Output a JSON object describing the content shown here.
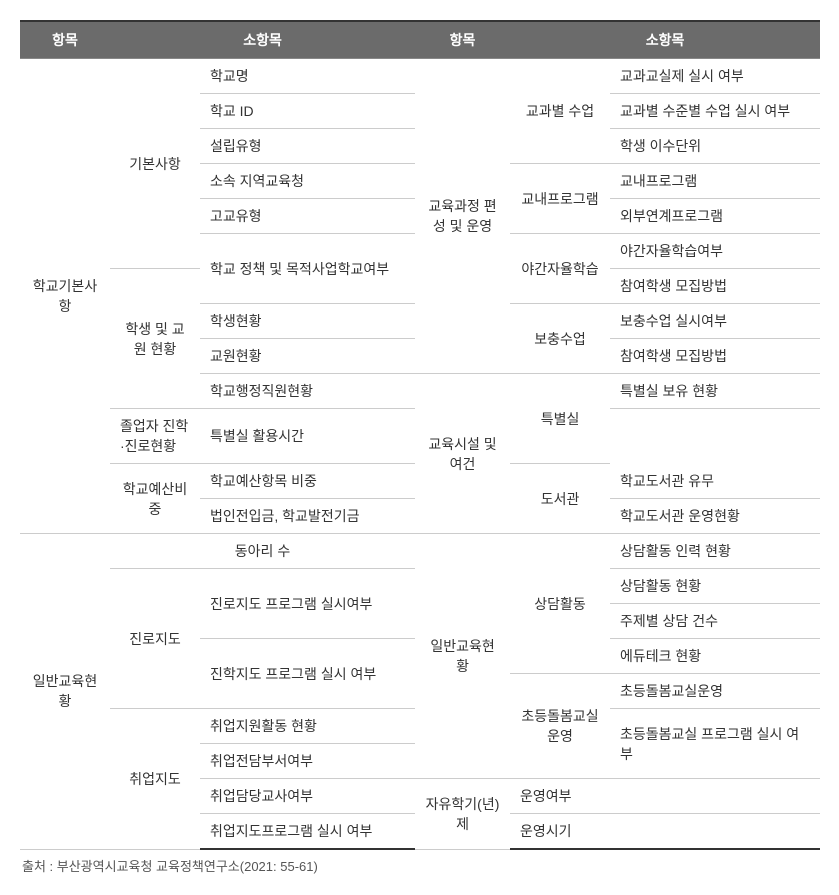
{
  "headers": {
    "h1": "항목",
    "h2": "소항목",
    "h3": "항목",
    "h4": "소항목"
  },
  "left": {
    "cat1": "학교기본사항",
    "cat2": "일반교육현황",
    "sub1": "기본사항",
    "sub2": "학생 및 교원 현황",
    "sub3": "학교예산비중",
    "sub4": "진로지도",
    "sub5": "취업지도",
    "r1": "학교명",
    "r2": "학교 ID",
    "r3": "설립유형",
    "r4": "소속 지역교육청",
    "r5": "고교유형",
    "r6": "학교 정책 및 목적사업학교여부",
    "r7": "학생현황",
    "r8": "교원현황",
    "r9": "학교행정직원현황",
    "r10": "졸업자 진학·진로현황",
    "r11": "학교예산항목 비중",
    "r12": "법인전입금, 학교발전기금",
    "r13": "동아리 수",
    "r14": "진로지도 프로그램 실시여부",
    "r15": "진학지도 프로그램 실시 여부",
    "r16": "취업지원활동 현황",
    "r17": "취업전담부서여부",
    "r18": "취업담당교사여부",
    "r19": "취업지도프로그램 실시 여부"
  },
  "right": {
    "cat1": "교육과정 편성 및 운영",
    "cat2": "교육시설 및 여건",
    "cat3": "일반교육현황",
    "cat4": "자유학기(년)제",
    "sub1": "교과별 수업",
    "sub2": "교내프로그램",
    "sub3": "야간자율학습",
    "sub4": "보충수업",
    "sub5": "특별실",
    "sub6": "도서관",
    "sub7": "상담활동",
    "sub8": "초등돌봄교실운영",
    "r1": "교과교실제 실시 여부",
    "r2": "교과별 수준별 수업 실시 여부",
    "r3": "학생 이수단위",
    "r4": "교내프로그램",
    "r5": "외부연계프로그램",
    "r6": "야간자율학습여부",
    "r7": "참여학생 모집방법",
    "r8": "보충수업 실시여부",
    "r9": "참여학생 모집방법",
    "r10": "특별실 보유 현황",
    "r11": "특별실 활용시간",
    "r12": "학교도서관 유무",
    "r13": "학교도서관 운영현황",
    "r14": "상담활동 인력 현황",
    "r15": "상담활동 현황",
    "r16": "주제별 상담 건수",
    "r17": "에듀테크 현황",
    "r18": "초등돌봄교실운영",
    "r19": "초등돌봄교실 프로그램 실시 여부",
    "r20": "운영여부",
    "r21": "운영시기"
  },
  "source": "출처 : 부산광역시교육청 교육정책연구소(2021: 55-61)"
}
